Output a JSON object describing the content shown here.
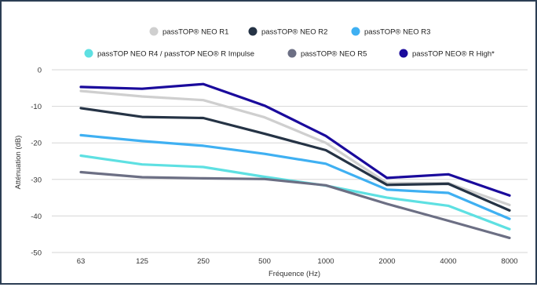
{
  "chart_data": {
    "type": "line",
    "title": "",
    "xlabel": "Fréquence (Hz)",
    "ylabel": "Atténuation (dB)",
    "categories": [
      "63",
      "125",
      "250",
      "500",
      "1000",
      "2000",
      "4000",
      "8000"
    ],
    "ylim": [
      -50,
      0
    ],
    "yticks": [
      0,
      -10,
      -20,
      -30,
      -40,
      -50
    ],
    "grid": "horizontal",
    "legend_position": "top",
    "series": [
      {
        "name": "passTOP® NEO R1",
        "color": "#cfcfcf",
        "values": [
          -5.8,
          -7.3,
          -8.3,
          -13,
          -20,
          -31,
          -31,
          -37
        ]
      },
      {
        "name": "passTOP® NEO R2",
        "color": "#253345",
        "values": [
          -10.5,
          -12.9,
          -13.2,
          -17.5,
          -22,
          -31.5,
          -31.2,
          -38.5
        ]
      },
      {
        "name": "passTOP® NEO R3",
        "color": "#3fb0f2",
        "values": [
          -17.9,
          -19.5,
          -20.8,
          -23,
          -25.7,
          -32.8,
          -33.7,
          -40.8
        ]
      },
      {
        "name": "passTOP NEO R4 / passTOP NEO® R Impulse",
        "color": "#5ee0e2",
        "values": [
          -23.5,
          -25.9,
          -26.6,
          -29.3,
          -31.7,
          -35,
          -37.2,
          -43.6
        ]
      },
      {
        "name": "passTOP® NEO R5",
        "color": "#6c6f84",
        "values": [
          -28,
          -29.4,
          -29.7,
          -29.9,
          -31.6,
          -36.7,
          -41.3,
          -46
        ]
      },
      {
        "name": "passTOP NEO® R High*",
        "color": "#1a0a9c",
        "values": [
          -4.7,
          -5.2,
          -3.9,
          -9.8,
          -18.1,
          -29.6,
          -28.6,
          -34.4
        ]
      }
    ]
  }
}
